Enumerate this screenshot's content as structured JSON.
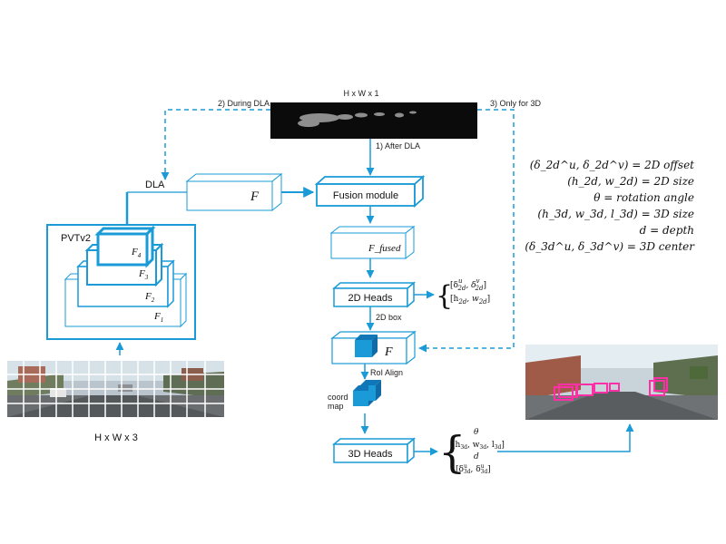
{
  "colors": {
    "accent": "#1a9bd7",
    "magenta": "#ff2fa8",
    "dark": "#0d0d0d"
  },
  "top_map": {
    "label": "H x W x 1"
  },
  "arrows": {
    "during_dla": "2) During DLA",
    "after_dla": "1) After DLA",
    "only_3d": "3) Only for 3D"
  },
  "dla": {
    "label": "DLA",
    "feature": "F"
  },
  "fusion": {
    "label": "Fusion module",
    "output": "F_fused"
  },
  "backbone": {
    "label": "PVTv2",
    "levels": [
      "F",
      "F",
      "F",
      "F"
    ],
    "subs": [
      "4",
      "3",
      "2",
      "1"
    ]
  },
  "input_image": {
    "label": "H x W x 3"
  },
  "heads2d": {
    "label": "2D Heads",
    "box_label": "2D box",
    "out1": "[δ",
    "out2": "[h"
  },
  "roi": {
    "feature": "F",
    "label": "RoI Align"
  },
  "coord": {
    "label1": "coord",
    "label2": "map"
  },
  "heads3d": {
    "label": "3D Heads"
  },
  "legend": [
    "(δ_2d^u, δ_2d^v) = 2D offset",
    "(h_2d, w_2d) = 2D size",
    "θ = rotation angle",
    "(h_3d, w_3d, l_3d) = 3D size",
    "d = depth",
    "(δ_3d^u, δ_3d^v) = 3D center"
  ]
}
